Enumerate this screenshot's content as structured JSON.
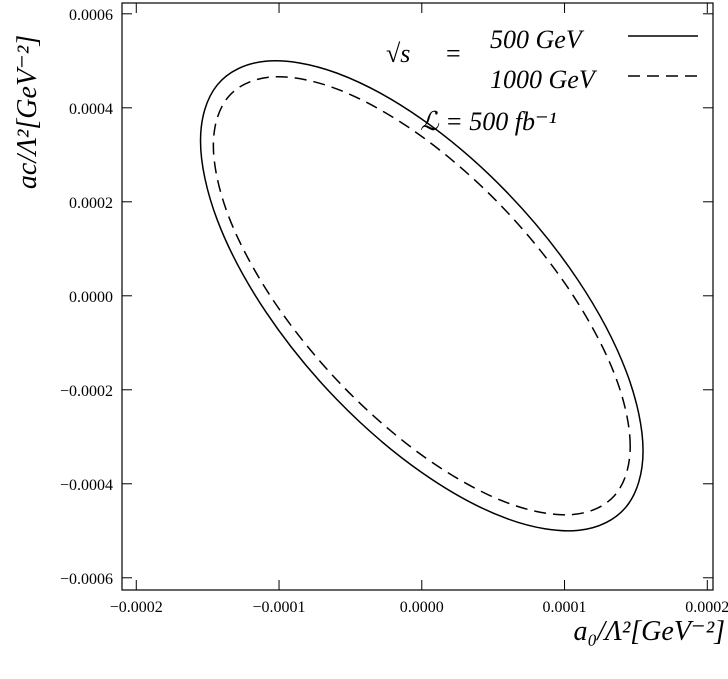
{
  "chart_data": {
    "type": "contour",
    "x_label": "a₀/Λ²[GeV⁻²]",
    "y_label": "ac/Λ²[GeV⁻²]",
    "legend_prefix": "√s",
    "legend_equals": "=",
    "annotation": "ℒ = 500 fb⁻¹",
    "xlim": [
      -0.00021,
      0.000204
    ],
    "ylim": [
      -0.000626,
      0.000623
    ],
    "xticks": [
      {
        "value": -0.0002,
        "label": "−0.0002"
      },
      {
        "value": -0.0001,
        "label": "−0.0001"
      },
      {
        "value": 0,
        "label": "0.0000"
      },
      {
        "value": 0.0001,
        "label": "0.0001"
      },
      {
        "value": 0.0002,
        "label": "0.0002"
      }
    ],
    "yticks": [
      {
        "value": -0.0006,
        "label": "−0.0006"
      },
      {
        "value": -0.0004,
        "label": "−0.0004"
      },
      {
        "value": -0.0002,
        "label": "−0.0002"
      },
      {
        "value": 0,
        "label": "0.0000"
      },
      {
        "value": 0.0002,
        "label": "0.0002"
      },
      {
        "value": 0.0004,
        "label": "0.0004"
      },
      {
        "value": 0.0006,
        "label": "0.0006"
      }
    ],
    "series": [
      {
        "name": "500 GeV",
        "color": "#000000",
        "dash": "none",
        "x": [
          0.000155,
          0.0001432,
          0.0001096,
          5.94e-05,
          0,
          -5.94e-05,
          -0.0001096,
          -0.0001432,
          -0.000155,
          -0.0001432,
          -0.0001096,
          -5.94e-05,
          0,
          5.94e-05,
          0.0001096,
          0.0001432
        ],
        "values": [
          -0.00033,
          -0.0001609,
          3.25e-05,
          0.000221,
          0.000376,
          0.0004738,
          0.0004991,
          0.0004489,
          0.00033,
          0.0001609,
          -3.25e-05,
          -0.000221,
          -0.000376,
          -0.0004738,
          -0.0004991,
          -0.0004489
        ]
      },
      {
        "name": "1000 GeV",
        "color": "#000000",
        "dash": "12 7",
        "x": [
          0.000146,
          0.0001349,
          0.0001032,
          5.59e-05,
          0,
          -5.59e-05,
          -0.0001032,
          -0.0001349,
          -0.000146,
          -0.0001349,
          -0.0001032,
          -5.59e-05,
          0,
          5.59e-05,
          0.0001032,
          0.0001349
        ],
        "values": [
          -0.00032,
          -0.0001659,
          1.35e-05,
          0.0001906,
          0.000339,
          0.0004358,
          0.0004659,
          0.0004255,
          0.00032,
          0.0001659,
          -1.35e-05,
          -0.0001906,
          -0.000339,
          -0.0004358,
          -0.0004659,
          -0.0004255
        ]
      }
    ]
  }
}
